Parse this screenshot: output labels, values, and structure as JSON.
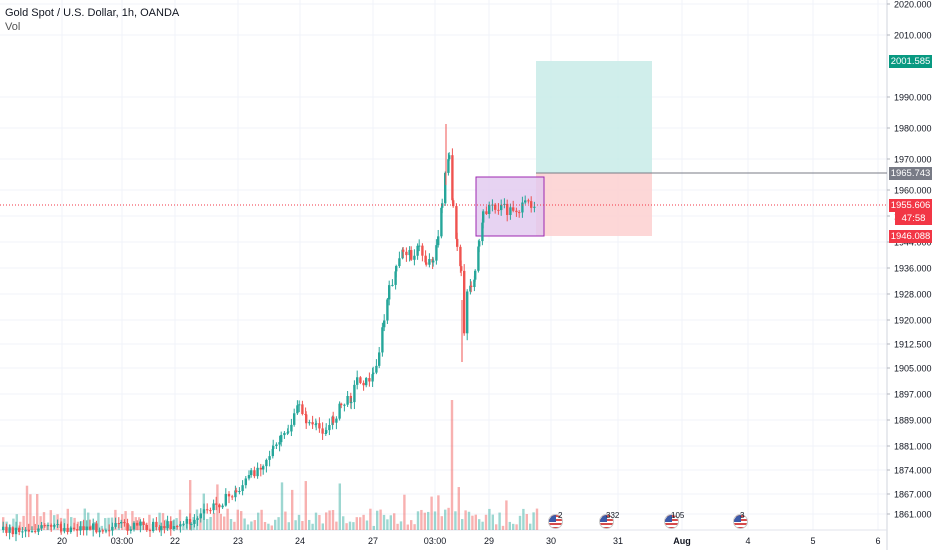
{
  "header": {
    "title": "Gold Spot / U.S. Dollar, 1h, OANDA",
    "volume_label": "Vol"
  },
  "price_axis": {
    "ticks": [
      "2020.000",
      "2010.000",
      "1990.000",
      "1980.000",
      "1970.000",
      "1960.000",
      "1952.000",
      "1944.000",
      "1936.000",
      "1928.000",
      "1920.000",
      "1912.500",
      "1905.000",
      "1897.000",
      "1889.000",
      "1881.000",
      "1874.000",
      "1867.000",
      "1861.000"
    ],
    "scale": "non-linear"
  },
  "time_axis": {
    "ticks": [
      "20",
      "03:00",
      "22",
      "23",
      "24",
      "27",
      "03:00",
      "29",
      "30",
      "31",
      "Aug",
      "4",
      "5",
      "6"
    ]
  },
  "price_tags": {
    "target": {
      "text": "2001.585",
      "color": "#089981"
    },
    "entry": {
      "text": "1965.743",
      "color": "#787b86"
    },
    "current": {
      "text": "1955.606",
      "color": "#f23645"
    },
    "countdown": {
      "text": "47:58",
      "color": "#f23645"
    },
    "stop": {
      "text": "1946.088",
      "color": "#f23645"
    }
  },
  "events": [
    {
      "count": "2"
    },
    {
      "count": "332"
    },
    {
      "count": "105"
    },
    {
      "count": "3"
    }
  ],
  "colors": {
    "up": "#26a69a",
    "down": "#ef5350",
    "grid": "#f0f3fa",
    "profit_zone": "#c8ebe8",
    "loss_zone": "#fdd0d0",
    "range_box": "#e1c8ef"
  },
  "chart_data": {
    "type": "candlestick",
    "symbol": "Gold Spot / U.S. Dollar",
    "interval": "1h",
    "source": "OANDA",
    "ylim": [
      1858,
      2022
    ],
    "long_position": {
      "entry": 1965.743,
      "target": 2001.585,
      "stop": 1946.088
    },
    "last_price": 1955.606
  }
}
